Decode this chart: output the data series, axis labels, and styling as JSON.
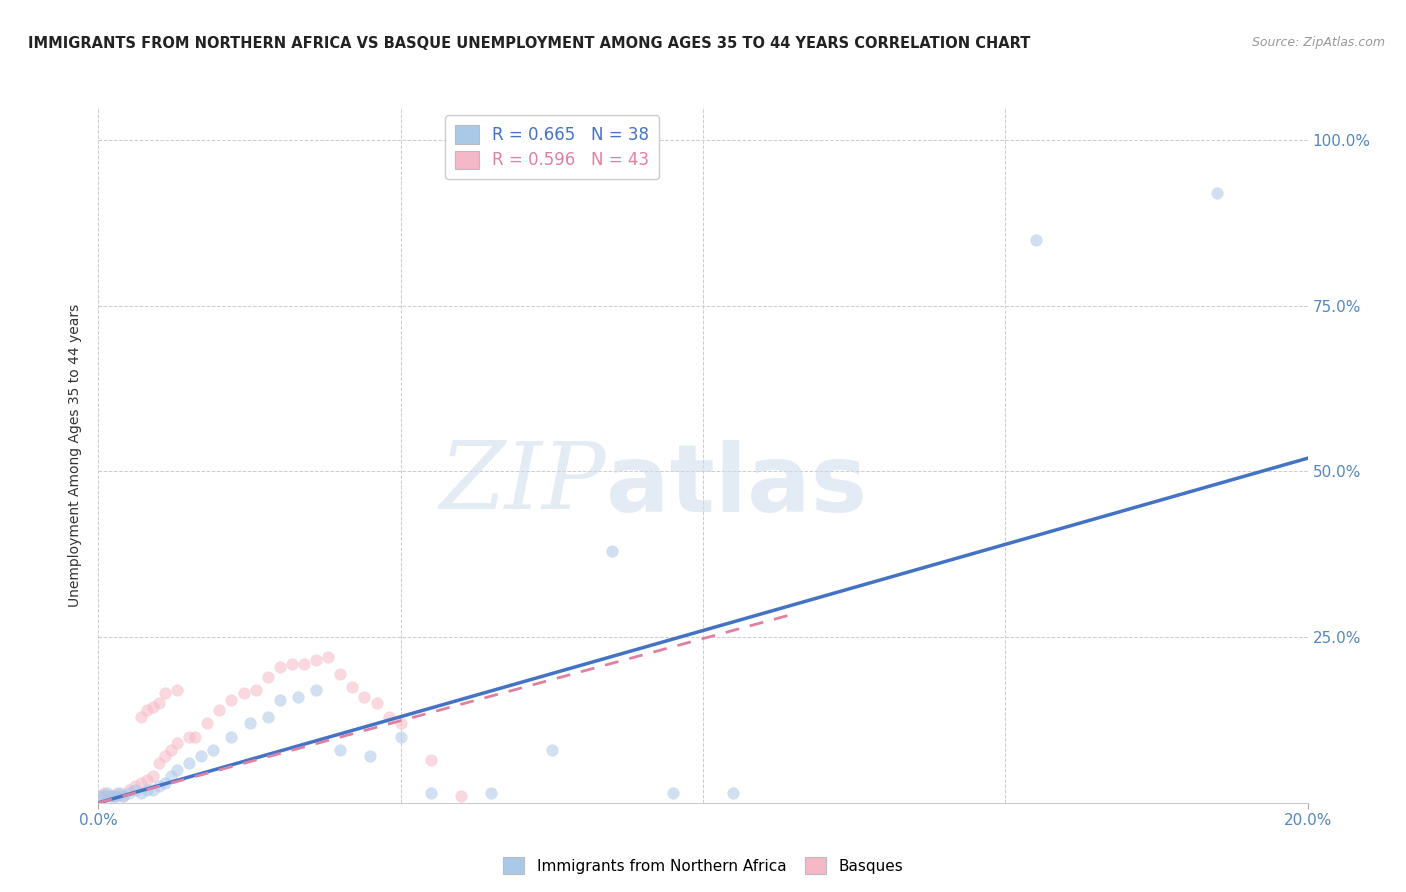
{
  "title": "IMMIGRANTS FROM NORTHERN AFRICA VS BASQUE UNEMPLOYMENT AMONG AGES 35 TO 44 YEARS CORRELATION CHART",
  "source": "Source: ZipAtlas.com",
  "ylabel": "Unemployment Among Ages 35 to 44 years",
  "xlim": [
    0.0,
    0.2
  ],
  "ylim": [
    0.0,
    1.05
  ],
  "ytick_labels": [
    "",
    "25.0%",
    "50.0%",
    "75.0%",
    "100.0%"
  ],
  "ytick_vals": [
    0.0,
    0.25,
    0.5,
    0.75,
    1.0
  ],
  "blue_scatter_x": [
    0.0005,
    0.001,
    0.0015,
    0.002,
    0.0025,
    0.003,
    0.0035,
    0.004,
    0.005,
    0.006,
    0.007,
    0.008,
    0.009,
    0.01,
    0.011,
    0.012,
    0.013,
    0.015,
    0.017,
    0.019,
    0.022,
    0.025,
    0.028,
    0.03,
    0.033,
    0.036,
    0.04,
    0.045,
    0.05,
    0.055,
    0.065,
    0.075,
    0.085,
    0.095,
    0.105,
    0.155,
    0.185
  ],
  "blue_scatter_y": [
    0.01,
    0.01,
    0.015,
    0.01,
    0.01,
    0.01,
    0.015,
    0.01,
    0.015,
    0.02,
    0.015,
    0.02,
    0.02,
    0.025,
    0.03,
    0.04,
    0.05,
    0.06,
    0.07,
    0.08,
    0.1,
    0.12,
    0.13,
    0.155,
    0.16,
    0.17,
    0.08,
    0.07,
    0.1,
    0.015,
    0.015,
    0.08,
    0.38,
    0.015,
    0.015,
    0.85,
    0.92
  ],
  "pink_scatter_x": [
    0.0005,
    0.001,
    0.0015,
    0.002,
    0.0025,
    0.003,
    0.004,
    0.005,
    0.006,
    0.007,
    0.008,
    0.009,
    0.01,
    0.011,
    0.012,
    0.013,
    0.015,
    0.016,
    0.018,
    0.02,
    0.022,
    0.024,
    0.026,
    0.028,
    0.03,
    0.032,
    0.034,
    0.036,
    0.038,
    0.04,
    0.042,
    0.044,
    0.046,
    0.048,
    0.05,
    0.055,
    0.06,
    0.007,
    0.008,
    0.009,
    0.01,
    0.011,
    0.013
  ],
  "pink_scatter_y": [
    0.01,
    0.015,
    0.01,
    0.01,
    0.01,
    0.015,
    0.01,
    0.02,
    0.025,
    0.03,
    0.035,
    0.04,
    0.06,
    0.07,
    0.08,
    0.09,
    0.1,
    0.1,
    0.12,
    0.14,
    0.155,
    0.165,
    0.17,
    0.19,
    0.205,
    0.21,
    0.21,
    0.215,
    0.22,
    0.195,
    0.175,
    0.16,
    0.15,
    0.13,
    0.12,
    0.065,
    0.01,
    0.13,
    0.14,
    0.145,
    0.15,
    0.165,
    0.17
  ],
  "blue_line_x": [
    0.0,
    0.2
  ],
  "blue_line_y": [
    0.0,
    0.52
  ],
  "pink_line_x": [
    0.0,
    0.115
  ],
  "pink_line_y": [
    0.0,
    0.285
  ],
  "watermark_zip": "ZIP",
  "watermark_atlas": "atlas",
  "background_color": "#ffffff",
  "scatter_alpha": 0.55,
  "scatter_size": 70,
  "grid_color": "#cccccc",
  "blue_color": "#aac8e8",
  "pink_color": "#f5b8c8",
  "blue_line_color": "#4472c4",
  "pink_line_color": "#e080a0",
  "title_fontsize": 10.5,
  "tick_label_color": "#5588bb",
  "ylabel_color": "#333333",
  "legend_blue_r": "R = 0.665",
  "legend_blue_n": "N = 38",
  "legend_pink_r": "R = 0.596",
  "legend_pink_n": "N = 43",
  "bottom_legend_blue": "Immigrants from Northern Africa",
  "bottom_legend_pink": "Basques"
}
